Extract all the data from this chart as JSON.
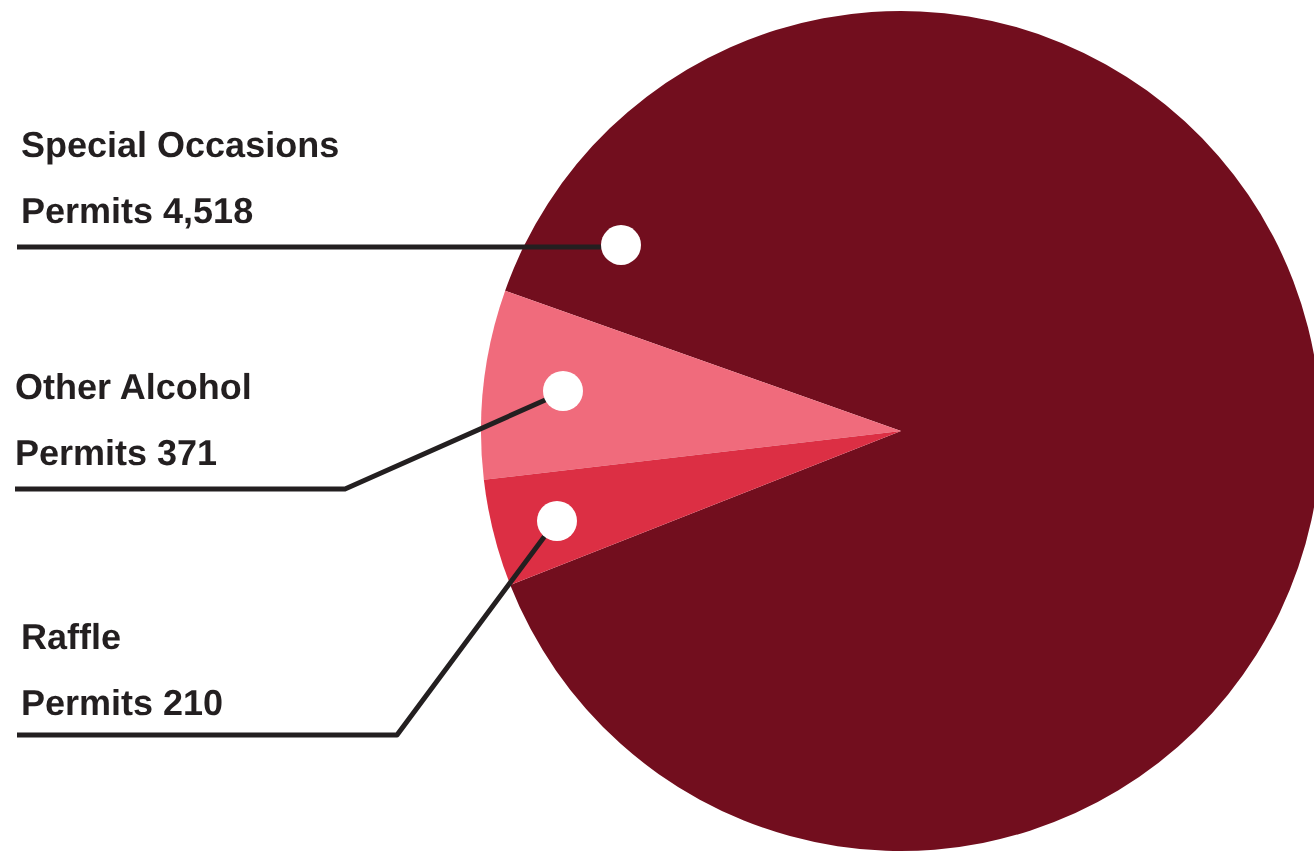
{
  "chart_data": {
    "type": "pie",
    "categories": [
      "Special Occasions\nPermits  4,518",
      "Other Alcohol\nPermits 371",
      "Raffle\nPermits   210"
    ],
    "values": [
      4518,
      371,
      210
    ],
    "colors": [
      "#720e1e",
      "#f06b7c",
      "#dc2f44"
    ]
  }
}
